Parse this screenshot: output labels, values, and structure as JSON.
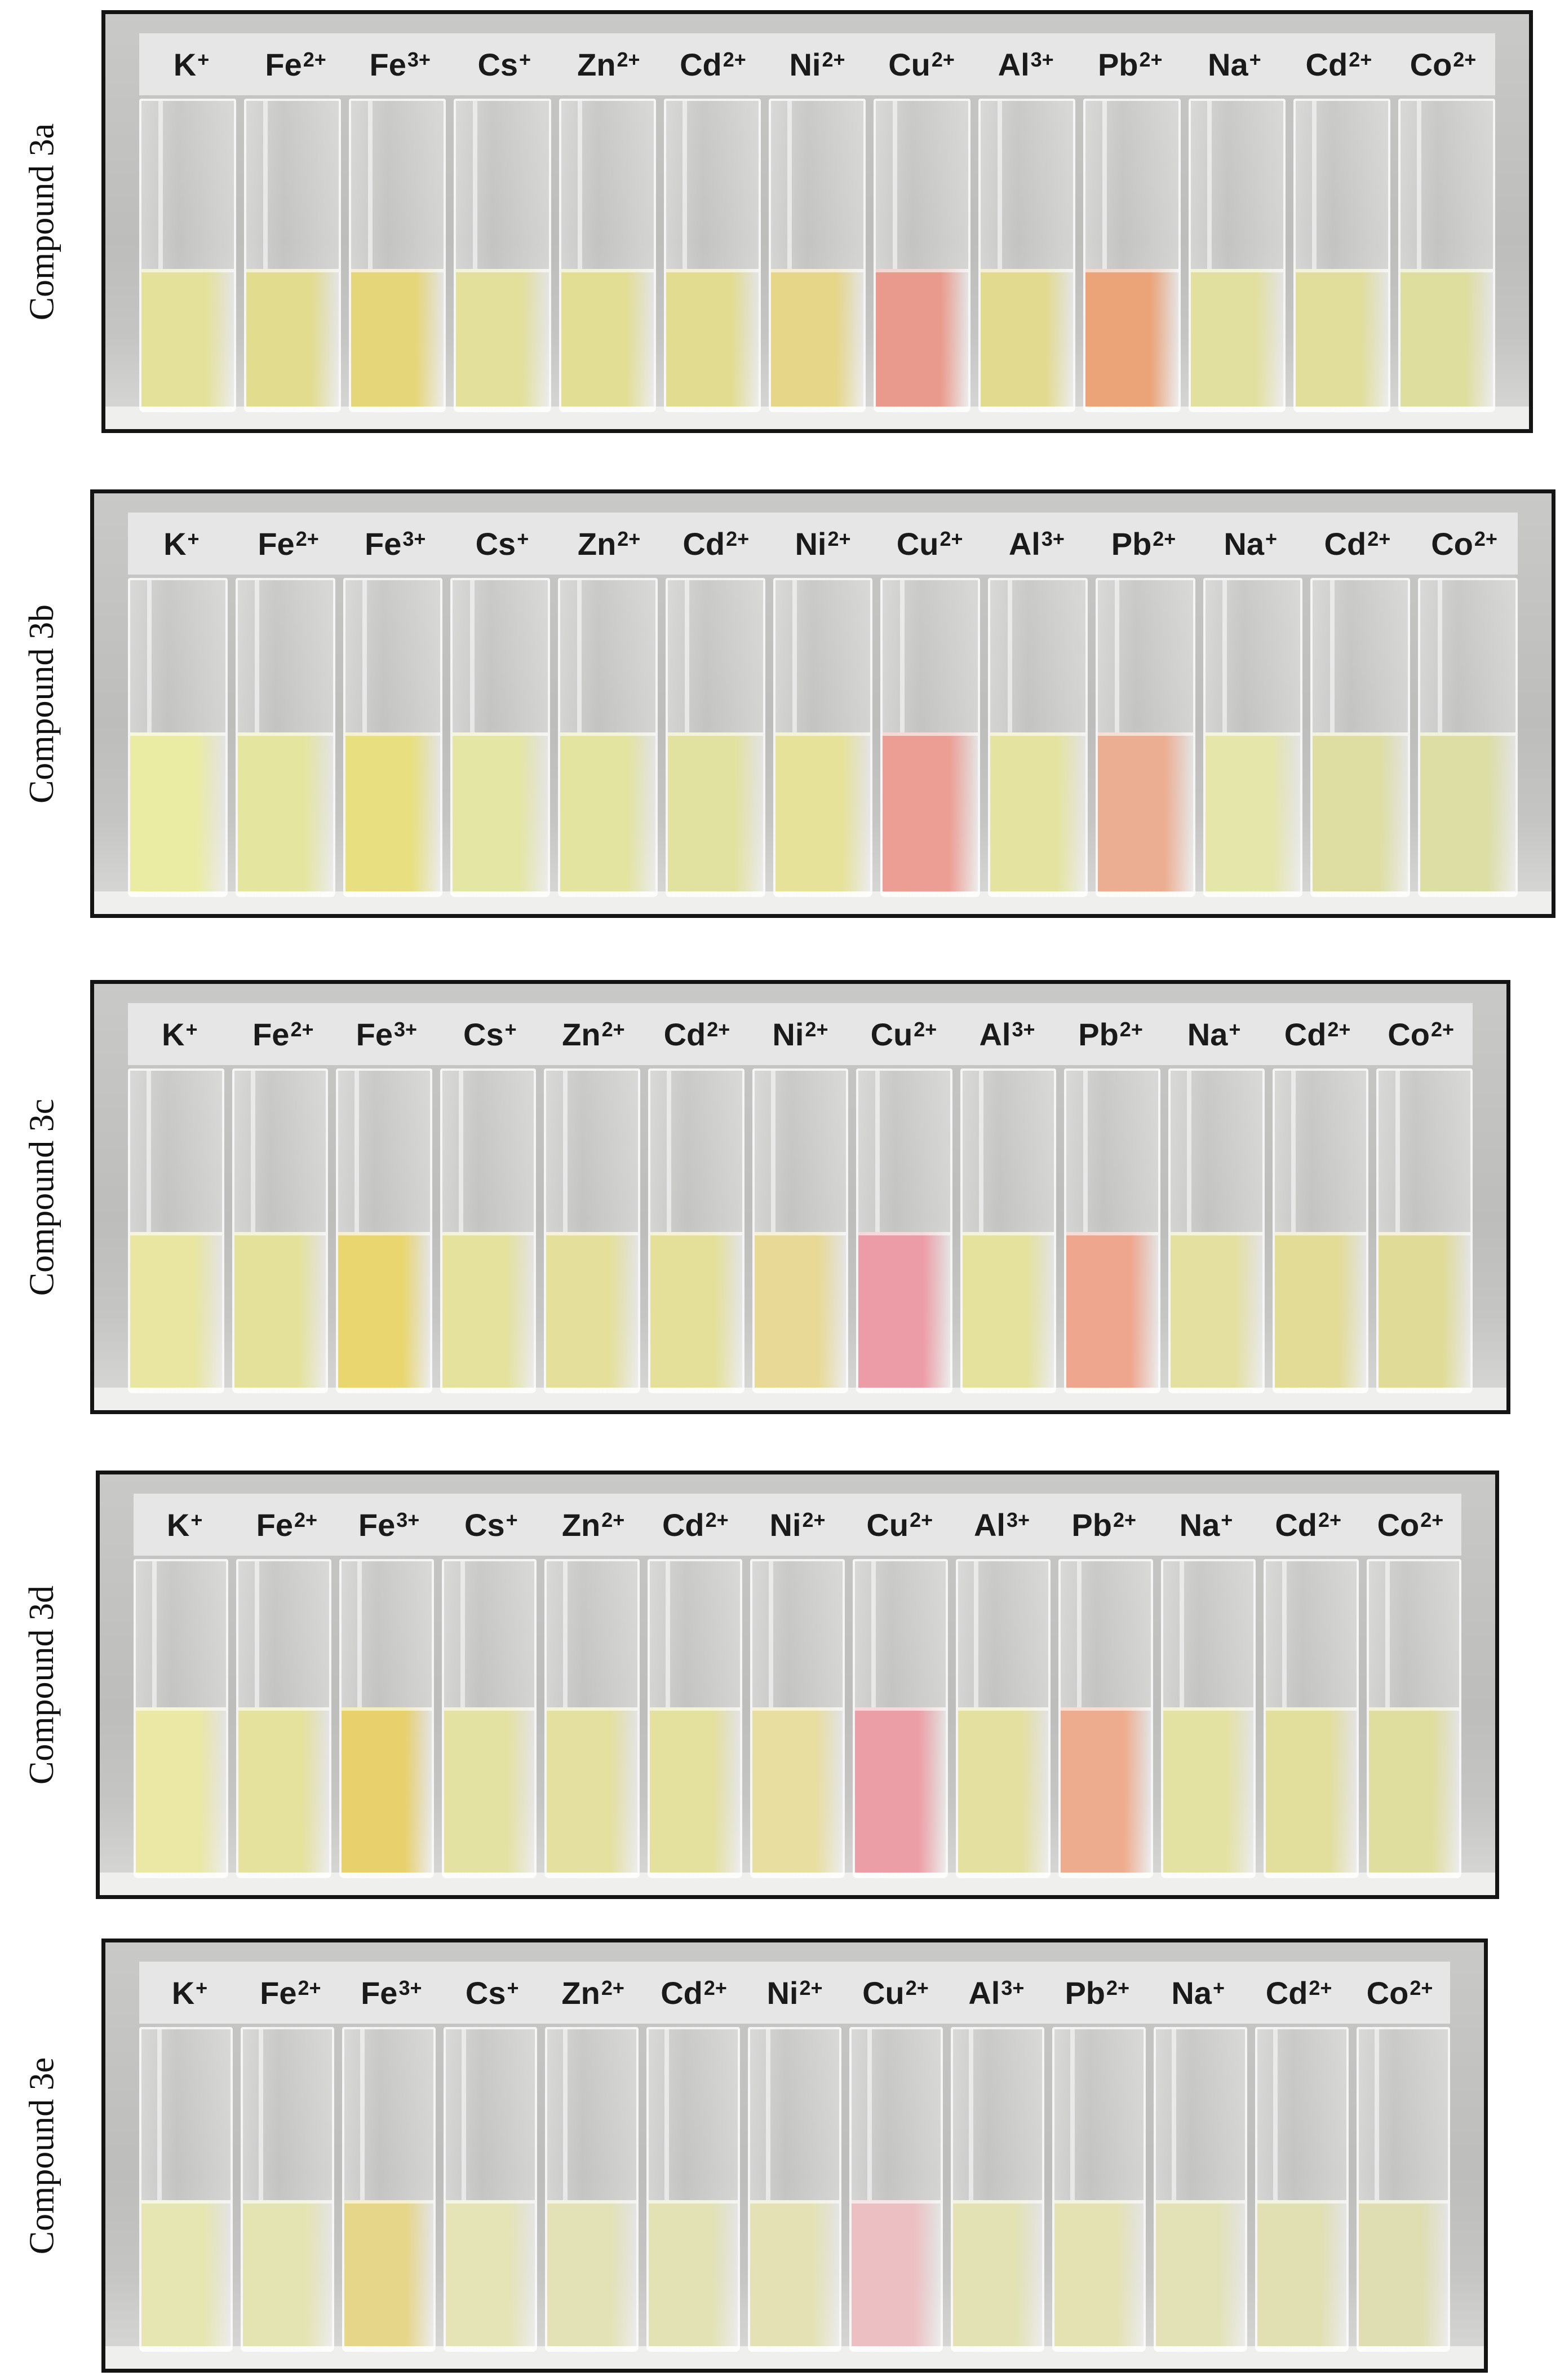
{
  "ions": [
    {
      "sym": "K",
      "charge": "+"
    },
    {
      "sym": "Fe",
      "charge": "2+"
    },
    {
      "sym": "Fe",
      "charge": "3+"
    },
    {
      "sym": "Cs",
      "charge": "+"
    },
    {
      "sym": "Zn",
      "charge": "2+"
    },
    {
      "sym": "Cd",
      "charge": "2+"
    },
    {
      "sym": "Ni",
      "charge": "2+"
    },
    {
      "sym": "Cu",
      "charge": "2+"
    },
    {
      "sym": "Al",
      "charge": "3+"
    },
    {
      "sym": "Pb",
      "charge": "2+"
    },
    {
      "sym": "Na",
      "charge": "+"
    },
    {
      "sym": "Cd",
      "charge": "2+"
    },
    {
      "sym": "Co",
      "charge": "2+"
    }
  ],
  "panels": [
    {
      "label": "Compound 3a",
      "fill": 0.44,
      "colors": [
        "#e4e29a",
        "#e2dc8e",
        "#e6d67a",
        "#e2e09a",
        "#e2de94",
        "#e2dc90",
        "#e6d688",
        "#e99a8c",
        "#e2da8e",
        "#eaa478",
        "#e2e09e",
        "#e0de9a",
        "#dede9e"
      ]
    },
    {
      "label": "Compound 3b",
      "fill": 0.5,
      "colors": [
        "#eaeca4",
        "#e4e6a0",
        "#e8e080",
        "#e4e6a4",
        "#e2e4a0",
        "#e2e2a0",
        "#e6e29a",
        "#ec9e94",
        "#e4e4a0",
        "#ecae92",
        "#e4e6aa",
        "#dedea2",
        "#dcdea4"
      ]
    },
    {
      "label": "Compound 3c",
      "fill": 0.48,
      "colors": [
        "#e8e6a0",
        "#e4e29a",
        "#ead66e",
        "#e4e29c",
        "#e4e09c",
        "#e4e09a",
        "#e8da96",
        "#ec9ca6",
        "#e4e29c",
        "#eea68e",
        "#e4e0a0",
        "#e2dc96",
        "#e0dc98"
      ]
    },
    {
      "label": "Compound 3d",
      "fill": 0.52,
      "colors": [
        "#eae8a4",
        "#e4e29c",
        "#e8d06c",
        "#e4e2a2",
        "#e4e0a0",
        "#e4e09e",
        "#e8dea0",
        "#ec9ea6",
        "#e4e0a0",
        "#eeac8e",
        "#e4e2a2",
        "#e2de9c",
        "#e0de9e"
      ]
    },
    {
      "label": "Compound 3e",
      "fill": 0.45,
      "colors": [
        "#e6e6b2",
        "#e4e4b2",
        "#e6d68a",
        "#e4e4b6",
        "#e2e2b6",
        "#e2e2b4",
        "#e4e2b4",
        "#ecc0c2",
        "#e2e2b4",
        "#e4e2b2",
        "#e2e2b6",
        "#e0e0b2",
        "#dedeb2"
      ]
    }
  ]
}
